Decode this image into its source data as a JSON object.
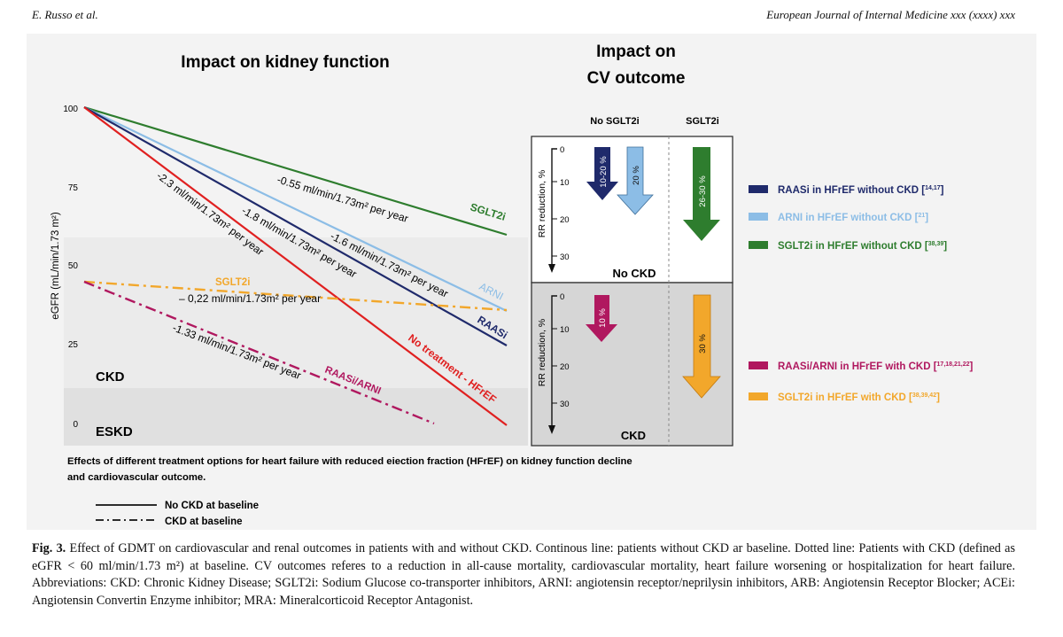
{
  "header": {
    "authors": "E. Russo et al.",
    "journal": "European Journal of Internal Medicine xxx (xxxx) xxx"
  },
  "figure": {
    "kidney_title": "Impact on kidney function",
    "cv_title_line1": "Impact on",
    "cv_title_line2": "CV outcome",
    "y_axis_label": "eGFR (mL/min/1.73 m²)",
    "y_ticks": [
      "100",
      "75",
      "50",
      "25",
      "0"
    ],
    "zones": {
      "ckd": "CKD",
      "eskd": "ESKD"
    },
    "lines": [
      {
        "name": "SGLT2i",
        "slope_label": "-0.55 ml/min/1.73m² per year",
        "color": "#2e7d2e"
      },
      {
        "name": "ARNI",
        "slope_label": "-1.6 ml/min/1.73m² per year",
        "color": "#8cbde6"
      },
      {
        "name": "RAASi",
        "slope_label": "-1.8 ml/min/1.73m² per year",
        "color": "#1f2a6b"
      },
      {
        "name": "No treatment - HFrEF",
        "slope_label": "-2.3 ml/min/1.73m² per year",
        "color": "#e02020"
      },
      {
        "name": "SGLT2i",
        "slope_label": "– 0,22 ml/min/1.73m² per year",
        "color": "#f2a72b"
      },
      {
        "name": "RAASi/ARNI",
        "slope_label": "-1.33 ml/min/1.73m² per year",
        "color": "#b0185f"
      }
    ],
    "cv": {
      "col_no_sglt2i": "No SGLT2i",
      "col_sglt2i": "SGLT2i",
      "rr_axis_label": "RR reduction, %",
      "rr_ticks": [
        "0",
        "10",
        "20",
        "30"
      ],
      "no_ckd_label": "No CKD",
      "ckd_label": "CKD",
      "arrows": [
        {
          "label": "10-20 %",
          "color": "#1f2a6b"
        },
        {
          "label": "20 %",
          "color": "#8cbde6"
        },
        {
          "label": "26-30 %",
          "color": "#2e7d2e"
        },
        {
          "label": "10 %",
          "color": "#b0185f"
        },
        {
          "label": "30 %",
          "color": "#f2a72b"
        }
      ]
    },
    "legend": [
      {
        "label": "RAASi in HFrEF without CKD",
        "ref": "14,17",
        "color": "#1f2a6b"
      },
      {
        "label": "ARNI in HFrEF without CKD",
        "ref": "21",
        "color": "#8cbde6"
      },
      {
        "label": "SGLT2i in HFrEF without CKD",
        "ref": "38,39",
        "color": "#2e7d2e"
      },
      {
        "label": "RAASi/ARNI in HFrEF with CKD",
        "ref": "17,18,21,22",
        "color": "#b0185f"
      },
      {
        "label": "SGLT2i in HFrEF with CKD",
        "ref": "38,39,42",
        "color": "#f2a72b"
      }
    ],
    "subtitle_line1": "Effects of different treatment options for heart failure with reduced eiection fraction (HFrEF) on kidney function decline",
    "subtitle_line2": "and cardiovascular outcome.",
    "line_legend": [
      {
        "label": "No CKD at baseline",
        "style": "solid"
      },
      {
        "label": "CKD at baseline",
        "style": "dashdot"
      }
    ]
  },
  "caption": {
    "label": "Fig. 3.",
    "text": "Effect of GDMT on cardiovascular and renal outcomes in patients with and without CKD. Continous line: patients without CKD ar baseline. Dotted line: Patients with CKD (defined as eGFR < 60 ml/min/1.73 m²) at baseline. CV outcomes referes to a reduction in all-cause mortality, cardiovascular mortality, heart failure worsening or hospitalization for heart failure. Abbreviations: CKD: Chronic Kidney Disease; SGLT2i: Sodium Glucose co-transporter inhibitors, ARNI: angiotensin receptor/neprilysin inhibitors, ARB: Angiotensin Receptor Blocker; ACEi: Angiotensin Convertin Enzyme inhibitor; MRA: Mineralcorticoid Receptor Antagonist."
  }
}
